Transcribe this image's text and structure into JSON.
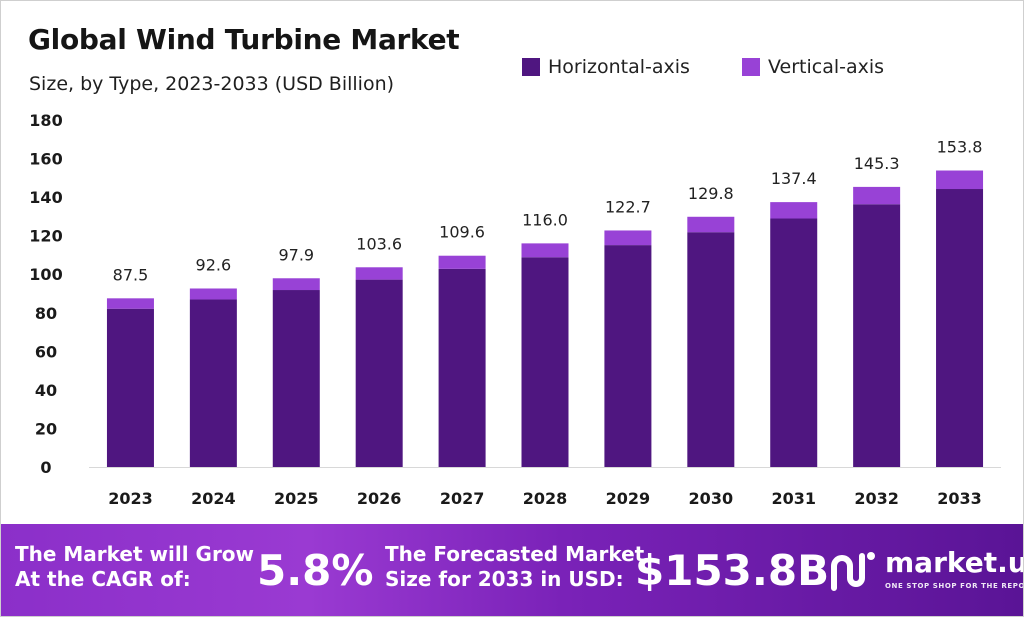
{
  "chart_data": {
    "type": "bar",
    "stacked": true,
    "title": "Global Wind Turbine Market",
    "subtitle": "Size, by Type, 2023-2033 (USD Billion)",
    "categories": [
      "2023",
      "2024",
      "2025",
      "2026",
      "2027",
      "2028",
      "2029",
      "2030",
      "2031",
      "2032",
      "2033"
    ],
    "series": [
      {
        "name": "Horizontal-axis",
        "color": "#4f1680",
        "values": [
          82.1,
          86.9,
          91.8,
          97.2,
          102.8,
          108.8,
          115.1,
          121.8,
          128.9,
          136.3,
          144.2
        ]
      },
      {
        "name": "Vertical-axis",
        "color": "#9842d6",
        "values": [
          5.4,
          5.7,
          6.1,
          6.4,
          6.8,
          7.2,
          7.6,
          8.0,
          8.5,
          9.0,
          9.6
        ]
      }
    ],
    "totals": [
      "87.5",
      "92.6",
      "97.9",
      "103.6",
      "109.6",
      "116.0",
      "122.7",
      "129.8",
      "137.4",
      "145.3",
      "153.8"
    ],
    "ylim": [
      0,
      180
    ],
    "yticks": [
      "0",
      "20",
      "40",
      "60",
      "80",
      "100",
      "120",
      "140",
      "160",
      "180"
    ],
    "grid": false,
    "legend_position": "top-right"
  },
  "footer": {
    "cagr_text_line1": "The Market will Grow",
    "cagr_text_line2": "At the CAGR of:",
    "cagr_value": "5.8%",
    "forecast_text_line1": "The Forecasted Market",
    "forecast_text_line2": "Size for 2033 in USD:",
    "forecast_value": "$153.8B",
    "brand": "market.us",
    "tagline": "ONE STOP SHOP FOR THE REPORTS"
  }
}
